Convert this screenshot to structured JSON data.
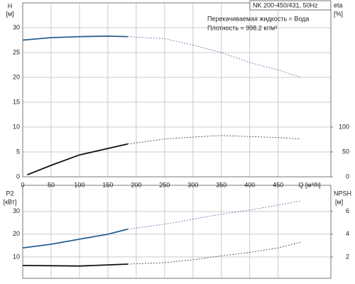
{
  "chart_data": [
    {
      "type": "line",
      "title": "NK 200-450/431, 50Hz",
      "notes": [
        "Перекачиваемая жидкость = Вода",
        "Плотность = 998.2 кг/м³"
      ],
      "ylabel": [
        "H",
        "[м]"
      ],
      "y2label": [
        "eta",
        "[%]"
      ],
      "xlabel": "Q [м³/h]",
      "xlim": [
        0,
        543
      ],
      "xticks": [
        0,
        50,
        100,
        150,
        200,
        250,
        300,
        350,
        400,
        450
      ],
      "show_xtick_labels": true,
      "ylim": [
        0,
        35
      ],
      "yticks": [
        0,
        5,
        10,
        15,
        20,
        25,
        30
      ],
      "y2lim": [
        0,
        350
      ],
      "y2ticks": [
        0,
        50,
        100
      ],
      "grid": true,
      "series": [
        {
          "color": "#2a5f8f",
          "line_style": "solid",
          "x": [
            0,
            50,
            100,
            150,
            185
          ],
          "values": [
            27.5,
            28,
            28.2,
            28.3,
            28.2
          ]
        },
        {
          "color": "#4a6fa0",
          "line_style": "dashed",
          "x": [
            185,
            250,
            300,
            350,
            400,
            450,
            490
          ],
          "values": [
            28.2,
            27.8,
            26.5,
            25,
            23,
            21.5,
            20
          ]
        },
        {
          "color": "#111111",
          "line_style": "solid",
          "axis": "y2",
          "x": [
            8,
            50,
            100,
            150,
            185
          ],
          "values": [
            4,
            23,
            44,
            57,
            66
          ]
        },
        {
          "color": "#333333",
          "line_style": "dashed",
          "axis": "y2",
          "x": [
            185,
            250,
            300,
            350,
            400,
            450,
            490
          ],
          "values": [
            66,
            76,
            80,
            83,
            81,
            79,
            76
          ]
        }
      ]
    },
    {
      "type": "line",
      "ylabel": [
        "P2",
        "[кВт]"
      ],
      "y2label": [
        "NPSH",
        "[м]"
      ],
      "xlim": [
        0,
        543
      ],
      "xticks": [
        0,
        50,
        100,
        150,
        200,
        250,
        300,
        350,
        400,
        450
      ],
      "show_xtick_labels": false,
      "ylim": [
        0.6,
        41.5
      ],
      "yticks": [
        10,
        20,
        30
      ],
      "y2lim": [
        0.12,
        8.3
      ],
      "y2ticks": [
        2,
        4,
        6
      ],
      "grid": true,
      "series": [
        {
          "color": "#2a5f8f",
          "line_style": "solid",
          "x": [
            0,
            50,
            100,
            150,
            185
          ],
          "values": [
            14,
            15.6,
            17.8,
            20,
            22.2
          ]
        },
        {
          "color": "#4a6fa0",
          "line_style": "dashed",
          "x": [
            185,
            250,
            300,
            350,
            400,
            450,
            490
          ],
          "values": [
            22.2,
            24.4,
            26.6,
            28.8,
            30.6,
            32.8,
            34.7
          ]
        },
        {
          "color": "#111111",
          "line_style": "solid",
          "axis": "y2",
          "x": [
            0,
            100,
            185
          ],
          "values": [
            1.25,
            1.2,
            1.37
          ]
        },
        {
          "color": "#333333",
          "line_style": "dashed",
          "axis": "y2",
          "x": [
            185,
            250,
            300,
            350,
            400,
            450,
            490
          ],
          "values": [
            1.37,
            1.5,
            1.75,
            2.1,
            2.4,
            2.8,
            3.3
          ]
        }
      ]
    }
  ]
}
